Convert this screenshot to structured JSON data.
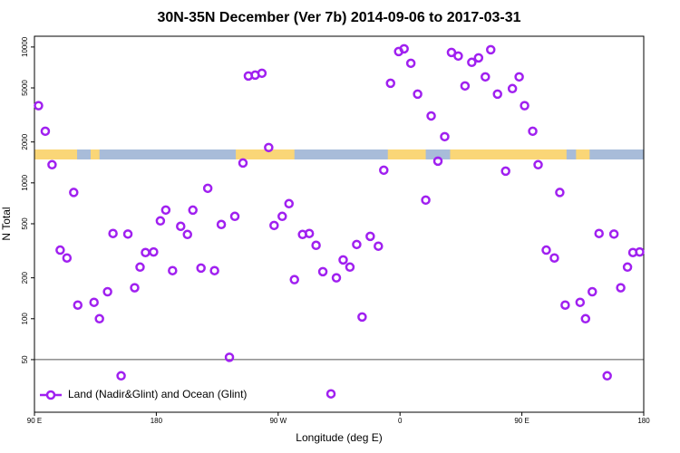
{
  "chart_data": {
    "type": "scatter",
    "title": "30N-35N December (Ver 7b)   2014-09-06 to 2017-03-31",
    "x_label": "Longitude (deg E)",
    "y_label": "N Total",
    "xlim": [
      90,
      540
    ],
    "ylim": [
      20.5,
      12000
    ],
    "log_y": true,
    "xticks": [
      {
        "value": 90,
        "label": "90 E"
      },
      180,
      {
        "value": 270,
        "label": "90 W"
      },
      {
        "value": 360,
        "label": "0"
      },
      {
        "value": 450,
        "label": "90 E"
      },
      {
        "value": 540,
        "label": "180"
      }
    ],
    "yticks": [
      50,
      100,
      200,
      500,
      1000,
      2000,
      5000,
      10000
    ],
    "hline": 50,
    "land_ranges": [
      [
        90,
        121.5
      ],
      [
        131.5,
        138
      ],
      [
        238.7,
        282
      ],
      [
        351,
        379
      ],
      [
        397,
        483
      ],
      [
        490,
        500
      ]
    ],
    "land_color": "#fad677",
    "ocean_color": "#a8bcd9",
    "legend": "bottom-left",
    "series": [
      {
        "name": "Land (Nadir&Glint) and Ocean (Glint)",
        "color": "#a020f0",
        "x": [
          93,
          98,
          103,
          109,
          114,
          119,
          122,
          134,
          138,
          144,
          148,
          154,
          159,
          164,
          168,
          172,
          178,
          183,
          187,
          192,
          198,
          203,
          207,
          213,
          218,
          223,
          228,
          234,
          238,
          244,
          248,
          253,
          258,
          263,
          267,
          273,
          278,
          282,
          288,
          293,
          298,
          303,
          309,
          313,
          318,
          323,
          328,
          332,
          338,
          344,
          348,
          353,
          359,
          363,
          368,
          373,
          379,
          383,
          388,
          393,
          398,
          403,
          408,
          413,
          418,
          423,
          427,
          432,
          438,
          443,
          448,
          452,
          458,
          462,
          468,
          474,
          478,
          482,
          493,
          497,
          502,
          507,
          513,
          518,
          523,
          528,
          532,
          537
        ],
        "values": [
          3700,
          2400,
          1360,
          320,
          280,
          850,
          126,
          132,
          100,
          158,
          424,
          38,
          420,
          169,
          240,
          307,
          310,
          525,
          631,
          226,
          479,
          417,
          630,
          236,
          912,
          226,
          494,
          52,
          567,
          1400,
          6120,
          6210,
          6410,
          1820,
          486,
          567,
          703,
          194,
          417,
          424,
          347,
          222,
          28,
          200,
          271,
          240,
          352,
          103,
          404,
          342,
          1240,
          5410,
          9260,
          9700,
          7590,
          4500,
          747,
          3110,
          1445,
          2188,
          9120,
          8580,
          5170,
          7710,
          8320,
          6030,
          9550,
          4500,
          1220,
          4940,
          6030,
          3700,
          2400,
          1360,
          320,
          280,
          850,
          126,
          132,
          100,
          158,
          424,
          38,
          420,
          169,
          240,
          307,
          310
        ]
      }
    ]
  }
}
